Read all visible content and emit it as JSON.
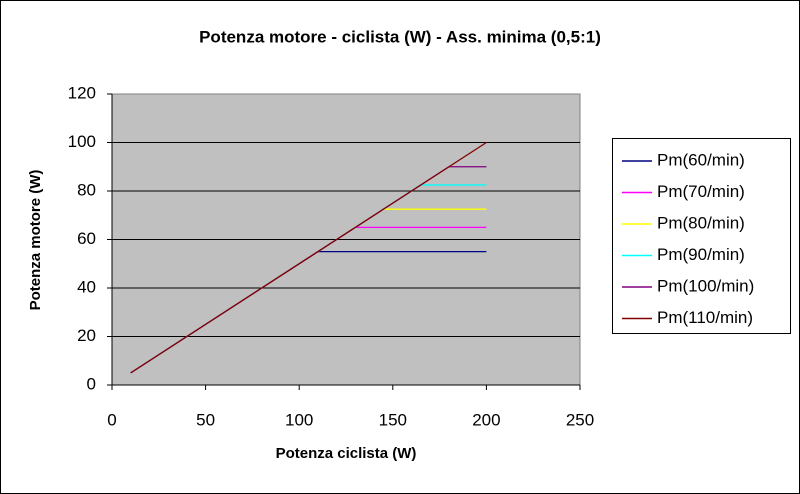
{
  "chart_data": {
    "type": "line",
    "title": "Potenza motore - ciclista (W) - Ass. minima (0,5:1)",
    "x_label": "Potenza ciclista (W)",
    "y_label": "Potenza motore (W)",
    "xlim": [
      0,
      250
    ],
    "xticks": [
      0,
      50,
      100,
      150,
      200,
      250
    ],
    "ylim": [
      0,
      120
    ],
    "yticks": [
      0,
      20,
      40,
      60,
      80,
      100,
      120
    ],
    "grid": true,
    "legend": "right",
    "plot_background": "#c0c0c0",
    "series": [
      {
        "name": "Pm(60/min)",
        "color": "#000080",
        "x": [
          10,
          110,
          200
        ],
        "values": [
          5,
          55,
          55
        ]
      },
      {
        "name": "Pm(70/min)",
        "color": "#ff00ff",
        "x": [
          10,
          130,
          200
        ],
        "values": [
          5,
          65,
          65
        ]
      },
      {
        "name": "Pm(80/min)",
        "color": "#ffff00",
        "x": [
          10,
          145,
          200
        ],
        "values": [
          5,
          72.5,
          72.5
        ]
      },
      {
        "name": "Pm(90/min)",
        "color": "#00ffff",
        "x": [
          10,
          165,
          200
        ],
        "values": [
          5,
          82.5,
          82.5
        ]
      },
      {
        "name": "Pm(100/min)",
        "color": "#800080",
        "x": [
          10,
          180,
          200
        ],
        "values": [
          5,
          90,
          90
        ]
      },
      {
        "name": "Pm(110/min)",
        "color": "#800000",
        "x": [
          10,
          200
        ],
        "values": [
          5,
          100
        ]
      }
    ]
  }
}
